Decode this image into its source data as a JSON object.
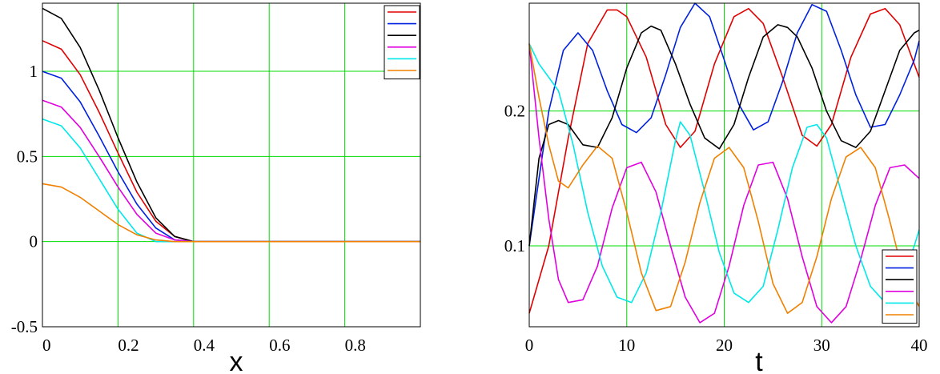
{
  "chart_data": [
    {
      "type": "line",
      "title": "",
      "xlabel": "x",
      "ylabel": "",
      "xlim": [
        0,
        1
      ],
      "ylim": [
        -0.5,
        1.4
      ],
      "xticks": [
        {
          "v": 0,
          "label": "0"
        },
        {
          "v": 0.2,
          "label": "0.2"
        },
        {
          "v": 0.4,
          "label": "0.4"
        },
        {
          "v": 0.6,
          "label": "0.6"
        },
        {
          "v": 0.8,
          "label": "0.8"
        }
      ],
      "yticks": [
        {
          "v": 1,
          "label": "1"
        },
        {
          "v": 0.5,
          "label": "0.5"
        },
        {
          "v": 0,
          "label": "0"
        },
        {
          "v": -0.5,
          "label": "-0.5"
        }
      ],
      "grid": true,
      "grid_color": "#00dd00",
      "legend_position": "top-right",
      "series": [
        {
          "color": "#e00000",
          "x": [
            0,
            0.05,
            0.1,
            0.15,
            0.2,
            0.25,
            0.3,
            0.35,
            0.4,
            0.45,
            0.5,
            0.6,
            0.7,
            0.8,
            0.9,
            1.0
          ],
          "y": [
            1.18,
            1.13,
            0.98,
            0.76,
            0.52,
            0.29,
            0.12,
            0.03,
            0,
            0,
            0,
            0,
            0,
            0,
            0,
            0
          ]
        },
        {
          "color": "#0020e0",
          "x": [
            0,
            0.05,
            0.1,
            0.15,
            0.2,
            0.25,
            0.3,
            0.35,
            0.4,
            0.45,
            0.5,
            0.6,
            0.7,
            0.8,
            0.9,
            1.0
          ],
          "y": [
            1.0,
            0.96,
            0.82,
            0.62,
            0.41,
            0.22,
            0.08,
            0.01,
            0,
            0,
            0,
            0,
            0,
            0,
            0,
            0
          ]
        },
        {
          "color": "#000000",
          "x": [
            0,
            0.05,
            0.1,
            0.15,
            0.2,
            0.25,
            0.3,
            0.35,
            0.4,
            0.45,
            0.5,
            0.6,
            0.7,
            0.8,
            0.9,
            1.0
          ],
          "y": [
            1.37,
            1.31,
            1.14,
            0.89,
            0.61,
            0.35,
            0.14,
            0.03,
            0,
            0,
            0,
            0,
            0,
            0,
            0,
            0
          ]
        },
        {
          "color": "#e000e0",
          "x": [
            0,
            0.05,
            0.1,
            0.15,
            0.2,
            0.25,
            0.3,
            0.35,
            0.4,
            0.45,
            0.5,
            0.6,
            0.7,
            0.8,
            0.9,
            1.0
          ],
          "y": [
            0.83,
            0.79,
            0.67,
            0.5,
            0.32,
            0.16,
            0.05,
            0.01,
            0,
            0,
            0,
            0,
            0,
            0,
            0,
            0
          ]
        },
        {
          "color": "#00e8e8",
          "x": [
            0,
            0.05,
            0.1,
            0.15,
            0.2,
            0.25,
            0.3,
            0.35,
            0.4,
            0.45,
            0.5,
            0.6,
            0.7,
            0.8,
            0.9,
            1.0
          ],
          "y": [
            0.72,
            0.68,
            0.55,
            0.37,
            0.19,
            0.05,
            0,
            0,
            0,
            0,
            0,
            0,
            0,
            0,
            0,
            0
          ]
        },
        {
          "color": "#f08000",
          "x": [
            0,
            0.05,
            0.1,
            0.15,
            0.2,
            0.25,
            0.3,
            0.35,
            0.4,
            0.45,
            0.5,
            0.6,
            0.7,
            0.8,
            0.9,
            1.0
          ],
          "y": [
            0.34,
            0.32,
            0.26,
            0.18,
            0.1,
            0.04,
            0.01,
            0,
            0,
            0,
            0,
            0,
            0,
            0,
            0,
            0
          ]
        }
      ]
    },
    {
      "type": "line",
      "title": "",
      "xlabel": "t",
      "ylabel": "",
      "xlim": [
        0,
        40
      ],
      "ylim": [
        0.04,
        0.28
      ],
      "xticks": [
        {
          "v": 0,
          "label": "0"
        },
        {
          "v": 10,
          "label": "10"
        },
        {
          "v": 20,
          "label": "20"
        },
        {
          "v": 30,
          "label": "30"
        },
        {
          "v": 40,
          "label": "40"
        }
      ],
      "yticks": [
        {
          "v": 0.2,
          "label": "0.2"
        },
        {
          "v": 0.1,
          "label": "0.1"
        }
      ],
      "grid": true,
      "grid_color": "#00dd00",
      "legend_position": "bottom-right",
      "series": [
        {
          "color": "#e00000",
          "x": [
            0,
            2,
            4,
            6,
            8,
            9,
            10,
            12,
            14,
            15.5,
            17,
            19,
            21,
            22.5,
            24,
            26,
            28,
            29.5,
            31,
            33,
            35,
            36.5,
            38,
            40
          ],
          "y": [
            0.05,
            0.1,
            0.18,
            0.25,
            0.275,
            0.275,
            0.27,
            0.24,
            0.19,
            0.173,
            0.185,
            0.235,
            0.27,
            0.276,
            0.265,
            0.225,
            0.182,
            0.174,
            0.19,
            0.24,
            0.272,
            0.276,
            0.264,
            0.225
          ]
        },
        {
          "color": "#0020e0",
          "x": [
            0,
            1,
            2,
            3.5,
            5,
            6.5,
            8,
            9.5,
            11,
            12.5,
            14,
            15.5,
            17,
            18.5,
            20,
            21.5,
            23,
            24.5,
            26,
            27.5,
            29,
            30.5,
            32,
            33.5,
            35,
            36.5,
            38,
            39.5,
            40
          ],
          "y": [
            0.1,
            0.15,
            0.2,
            0.245,
            0.258,
            0.245,
            0.215,
            0.19,
            0.184,
            0.195,
            0.227,
            0.262,
            0.28,
            0.27,
            0.238,
            0.205,
            0.186,
            0.192,
            0.222,
            0.258,
            0.279,
            0.274,
            0.245,
            0.212,
            0.188,
            0.19,
            0.212,
            0.238,
            0.252
          ]
        },
        {
          "color": "#000000",
          "x": [
            0,
            1,
            2,
            3,
            4,
            5.5,
            7,
            8.5,
            10,
            11.5,
            12.5,
            13.5,
            15,
            16.5,
            18,
            19.5,
            21,
            22.5,
            24,
            25.5,
            26.5,
            27.5,
            29,
            30.5,
            32,
            33.5,
            35,
            36.5,
            38,
            39.5,
            40
          ],
          "y": [
            0.1,
            0.165,
            0.19,
            0.193,
            0.19,
            0.175,
            0.173,
            0.195,
            0.232,
            0.258,
            0.263,
            0.26,
            0.235,
            0.205,
            0.18,
            0.172,
            0.19,
            0.225,
            0.255,
            0.264,
            0.262,
            0.255,
            0.232,
            0.2,
            0.178,
            0.173,
            0.185,
            0.215,
            0.245,
            0.258,
            0.26
          ]
        },
        {
          "color": "#e000e0",
          "x": [
            0,
            1,
            2,
            3,
            4,
            5.5,
            7,
            8.5,
            10,
            11.5,
            13,
            14.5,
            16,
            17.5,
            19,
            20.5,
            22,
            23.5,
            25,
            26.5,
            28,
            29.5,
            31,
            32.5,
            34,
            35.5,
            37,
            38.5,
            40
          ],
          "y": [
            0.25,
            0.18,
            0.12,
            0.075,
            0.058,
            0.06,
            0.085,
            0.128,
            0.158,
            0.162,
            0.14,
            0.1,
            0.062,
            0.043,
            0.05,
            0.085,
            0.13,
            0.16,
            0.162,
            0.135,
            0.092,
            0.055,
            0.043,
            0.055,
            0.09,
            0.13,
            0.158,
            0.16,
            0.15
          ]
        },
        {
          "color": "#00e8e8",
          "x": [
            0,
            1,
            2,
            3,
            4.5,
            6,
            7.5,
            9,
            10.5,
            12,
            13.5,
            15,
            15.5,
            16.5,
            18,
            19.5,
            21,
            22.5,
            24,
            25.5,
            27,
            28.5,
            29.5,
            30.5,
            32,
            33.5,
            35,
            36.5,
            38,
            39.5,
            40
          ],
          "y": [
            0.25,
            0.235,
            0.225,
            0.215,
            0.175,
            0.125,
            0.085,
            0.062,
            0.058,
            0.08,
            0.125,
            0.178,
            0.192,
            0.182,
            0.14,
            0.095,
            0.065,
            0.058,
            0.07,
            0.112,
            0.158,
            0.188,
            0.19,
            0.18,
            0.14,
            0.1,
            0.07,
            0.058,
            0.072,
            0.1,
            0.112
          ]
        },
        {
          "color": "#f08000",
          "x": [
            0,
            1,
            2,
            3,
            4,
            5.5,
            7,
            8.5,
            10,
            11.5,
            13,
            14.5,
            16,
            17.5,
            19,
            20.5,
            22,
            23.5,
            25,
            26.5,
            28,
            29.5,
            31,
            32.5,
            34,
            35.5,
            37,
            38.5,
            40
          ],
          "y": [
            0.25,
            0.21,
            0.175,
            0.148,
            0.143,
            0.16,
            0.174,
            0.165,
            0.125,
            0.08,
            0.052,
            0.055,
            0.088,
            0.132,
            0.165,
            0.173,
            0.158,
            0.118,
            0.072,
            0.05,
            0.058,
            0.092,
            0.135,
            0.166,
            0.173,
            0.158,
            0.118,
            0.075,
            0.055
          ]
        }
      ]
    }
  ]
}
